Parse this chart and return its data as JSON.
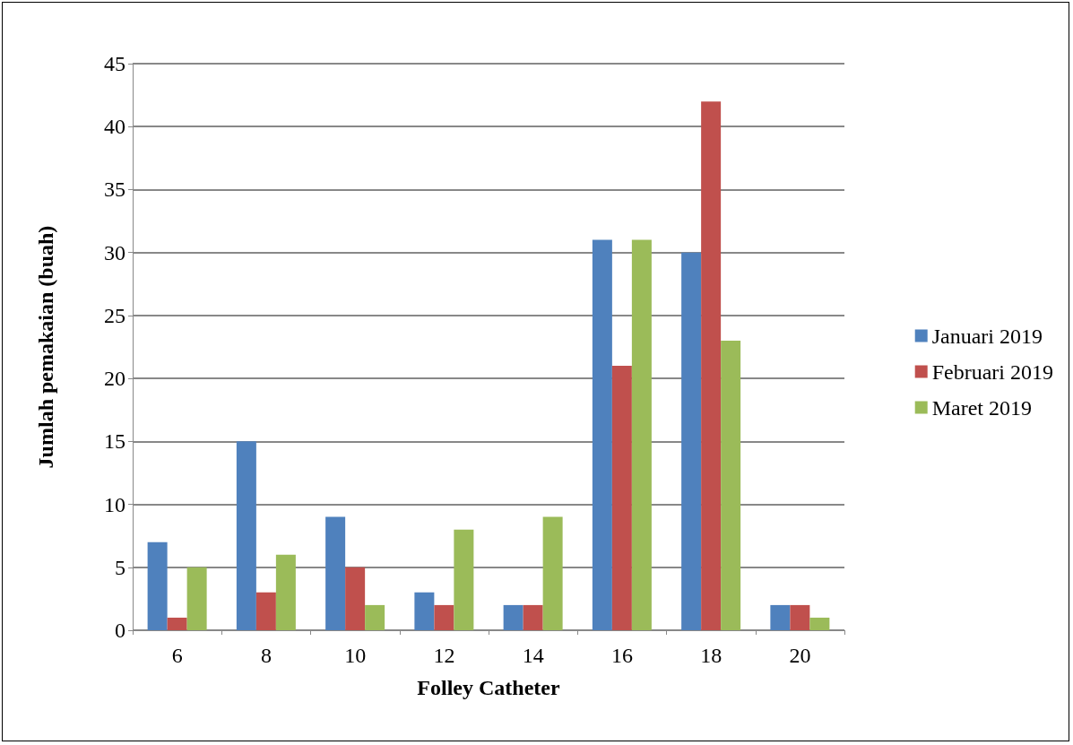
{
  "chart_data": {
    "type": "bar",
    "xlabel": "Folley Catheter",
    "ylabel": "Jumlah pemakaian (buah)",
    "categories": [
      "6",
      "8",
      "10",
      "12",
      "14",
      "16",
      "18",
      "20"
    ],
    "series": [
      {
        "name": "Januari 2019",
        "color": "#4f81bd",
        "values": [
          7,
          15,
          9,
          3,
          2,
          31,
          30,
          2
        ]
      },
      {
        "name": "Februari 2019",
        "color": "#c0504d",
        "values": [
          1,
          3,
          5,
          2,
          2,
          21,
          42,
          2
        ]
      },
      {
        "name": "Maret 2019",
        "color": "#9bbb59",
        "values": [
          5,
          6,
          2,
          8,
          9,
          31,
          23,
          1
        ]
      }
    ],
    "ylim": [
      0,
      45
    ],
    "yticks": [
      0,
      5,
      10,
      15,
      20,
      25,
      30,
      35,
      40,
      45
    ],
    "grid": "y",
    "legend": "right"
  }
}
